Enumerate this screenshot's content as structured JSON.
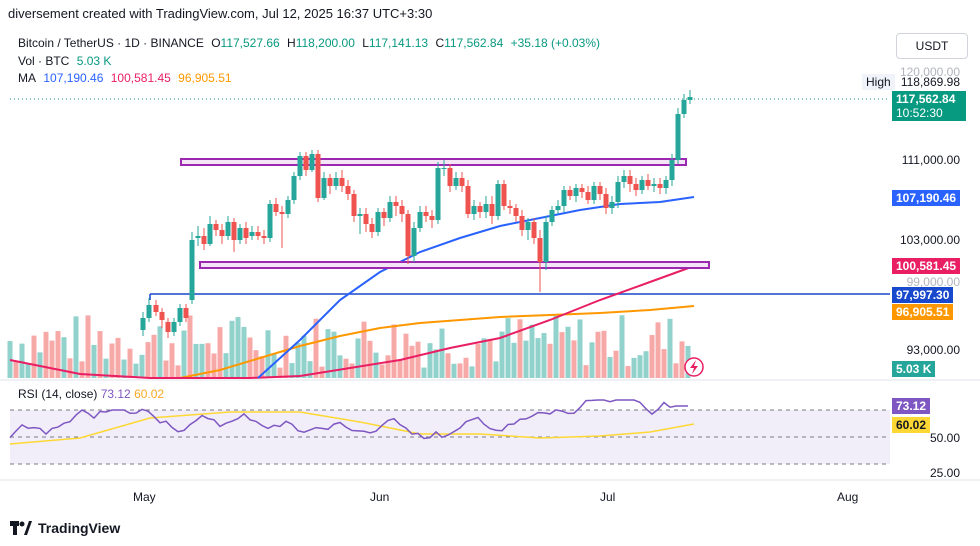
{
  "caption": "diversement created with TradingView.com, Jul 12, 2025 16:37 UTC+3:30",
  "symbol": {
    "name": "Bitcoin / TetherUS · 1D · BINANCE",
    "open_label": "O",
    "open": "117,527.66",
    "high_label": "H",
    "high": "118,200.00",
    "low_label": "L",
    "low": "117,141.13",
    "close_label": "C",
    "close": "117,562.84",
    "change": "+35.18 (+0.03%)"
  },
  "volume": {
    "label": "Vol · BTC",
    "value": "5.03 K"
  },
  "ma": {
    "label": "MA",
    "v1": "107,190.46",
    "v2": "100,581.45",
    "v3": "96,905.51"
  },
  "currency_button": "USDT",
  "price_axis": {
    "top_partial": "120,000.00",
    "ticks": [
      "111,000.00",
      "103,000.00",
      "99,000.00",
      "93,000.00"
    ],
    "high_label": "High",
    "high_value": "118,869.98",
    "current_price": "117,562.84",
    "countdown": "10:52:30",
    "ma1_tag": "107,190.46",
    "ma2_tag": "100,581.45",
    "hline_tag": "97,997.30",
    "ma3_tag": "96,905.51",
    "volume_tag": "5.03 K"
  },
  "rsi": {
    "label": "RSI (14, close)",
    "value": "73.12",
    "ma": "60.02",
    "axis_50": "50.00",
    "axis_25": "25.00",
    "tag_value": "73.12",
    "tag_ma": "60.02"
  },
  "time_axis": [
    "May",
    "Jun",
    "Jul",
    "Aug"
  ],
  "logo": "TradingView",
  "colors": {
    "up": "#26a69a",
    "down": "#ef5350",
    "ma1": "#2962ff",
    "ma2": "#e91e63",
    "ma3": "#ff9800",
    "zone": "#9c27b0",
    "hline": "#1848cc",
    "rsi": "#7e57c2",
    "rsi_ma": "#fdd835"
  }
}
